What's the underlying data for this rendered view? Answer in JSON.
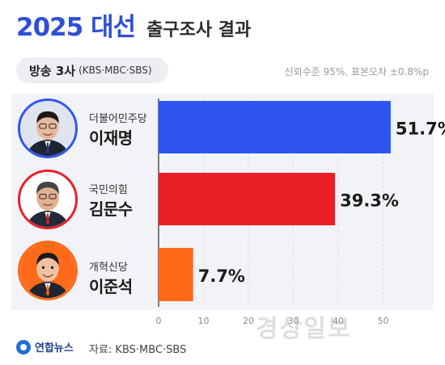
{
  "header": {
    "title_main": "2025 대선",
    "title_sub": "출구조사 결과",
    "broadcast_label": "방송 3사",
    "broadcast_paren": "(KBS·MBC·SBS)",
    "note": "신뢰수준 95%, 표본오차 ±0.8%p"
  },
  "candidates": [
    {
      "party": "더불어민주당",
      "name": "이재명",
      "color": "#2f55f0",
      "value_label": "51.7%"
    },
    {
      "party": "국민의힘",
      "name": "김문수",
      "color": "#ea1f25",
      "value_label": "39.3%"
    },
    {
      "party": "개혁신당",
      "name": "이준석",
      "color": "#ff6a1a",
      "value_label": "7.7%"
    }
  ],
  "chart_data": {
    "type": "bar",
    "orientation": "horizontal",
    "categories": [
      "이재명",
      "김문수",
      "이준석"
    ],
    "values": [
      51.7,
      39.3,
      7.7
    ],
    "colors": [
      "#2f55f0",
      "#ea1f25",
      "#ff6a1a"
    ],
    "xlim": [
      0,
      55
    ],
    "xticks": [
      0,
      10,
      20,
      30,
      40,
      50
    ],
    "grid": true,
    "title": "2025 대선 출구조사 결과"
  },
  "footer": {
    "logo_text": "연합뉴스",
    "source": "자료: KBS·MBC·SBS",
    "watermark": "경상일보"
  }
}
